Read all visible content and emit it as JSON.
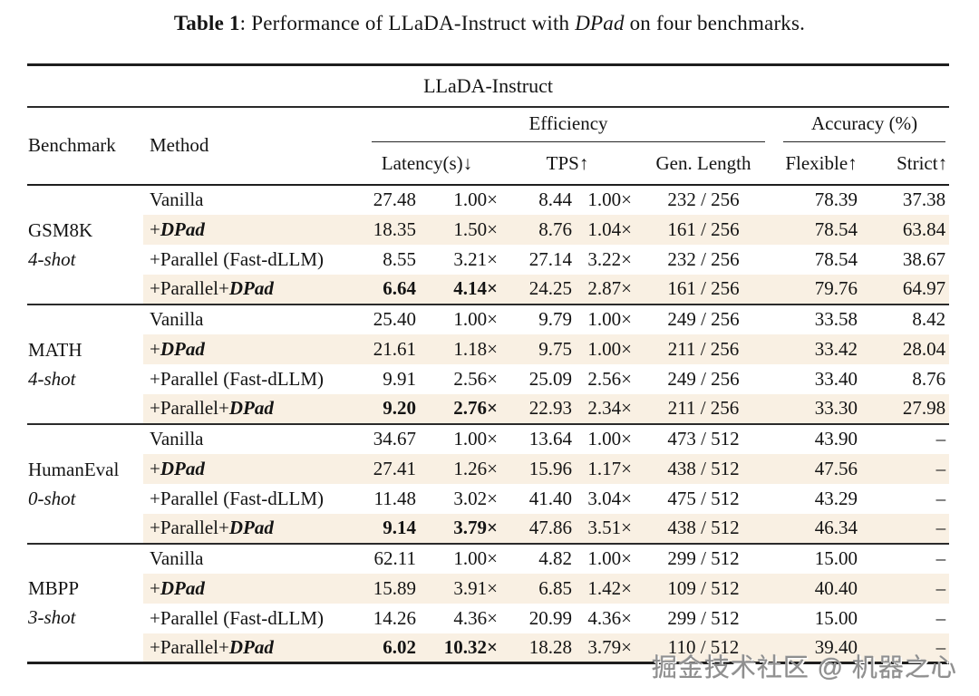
{
  "caption": {
    "label": "Table 1",
    "rest": ": Performance of LLaDA-Instruct with ",
    "emph": "DPad",
    "tail": " on four benchmarks."
  },
  "table": {
    "model_header": "LLaDA-Instruct",
    "headers": {
      "benchmark": "Benchmark",
      "method": "Method",
      "efficiency": "Efficiency",
      "accuracy": "Accuracy (%)",
      "latency": "Latency(s)↓",
      "tps": "TPS↑",
      "gen_length": "Gen. Length",
      "flexible": "Flexible↑",
      "strict": "Strict↑"
    }
  },
  "colors": {
    "highlight_row": "#f9f0e3",
    "rule": "#1f1f1f",
    "text": "#141414",
    "watermark": "#8f8f8f"
  },
  "groups": [
    {
      "name": "GSM8K",
      "shots": "4-shot",
      "rows": [
        {
          "method_plain": "Vanilla",
          "method_emph": "",
          "latency": "27.48",
          "latency_x": "1.00×",
          "tps": "8.44",
          "tps_x": "1.00×",
          "gen_length": "232 / 256",
          "flexible": "78.39",
          "strict": "37.38"
        },
        {
          "method_plain": "+",
          "method_emph": "DPad",
          "latency": "18.35",
          "latency_x": "1.50×",
          "tps": "8.76",
          "tps_x": "1.04×",
          "gen_length": "161 / 256",
          "flexible": "78.54",
          "strict": "63.84"
        },
        {
          "method_plain": "+Parallel (Fast-dLLM)",
          "method_emph": "",
          "latency": "8.55",
          "latency_x": "3.21×",
          "tps": "27.14",
          "tps_x": "3.22×",
          "gen_length": "232 / 256",
          "flexible": "78.54",
          "strict": "38.67"
        },
        {
          "method_plain": "+Parallel+",
          "method_emph": "DPad",
          "latency": "6.64",
          "latency_x": "4.14×",
          "tps": "24.25",
          "tps_x": "2.87×",
          "gen_length": "161 / 256",
          "flexible": "79.76",
          "strict": "64.97"
        }
      ]
    },
    {
      "name": "MATH",
      "shots": "4-shot",
      "rows": [
        {
          "method_plain": "Vanilla",
          "method_emph": "",
          "latency": "25.40",
          "latency_x": "1.00×",
          "tps": "9.79",
          "tps_x": "1.00×",
          "gen_length": "249 / 256",
          "flexible": "33.58",
          "strict": "8.42"
        },
        {
          "method_plain": "+",
          "method_emph": "DPad",
          "latency": "21.61",
          "latency_x": "1.18×",
          "tps": "9.75",
          "tps_x": "1.00×",
          "gen_length": "211 / 256",
          "flexible": "33.42",
          "strict": "28.04"
        },
        {
          "method_plain": "+Parallel (Fast-dLLM)",
          "method_emph": "",
          "latency": "9.91",
          "latency_x": "2.56×",
          "tps": "25.09",
          "tps_x": "2.56×",
          "gen_length": "249 / 256",
          "flexible": "33.40",
          "strict": "8.76"
        },
        {
          "method_plain": "+Parallel+",
          "method_emph": "DPad",
          "latency": "9.20",
          "latency_x": "2.76×",
          "tps": "22.93",
          "tps_x": "2.34×",
          "gen_length": "211 / 256",
          "flexible": "33.30",
          "strict": "27.98"
        }
      ]
    },
    {
      "name": "HumanEval",
      "shots": "0-shot",
      "rows": [
        {
          "method_plain": "Vanilla",
          "method_emph": "",
          "latency": "34.67",
          "latency_x": "1.00×",
          "tps": "13.64",
          "tps_x": "1.00×",
          "gen_length": "473 / 512",
          "flexible": "43.90",
          "strict": "–"
        },
        {
          "method_plain": "+",
          "method_emph": "DPad",
          "latency": "27.41",
          "latency_x": "1.26×",
          "tps": "15.96",
          "tps_x": "1.17×",
          "gen_length": "438 / 512",
          "flexible": "47.56",
          "strict": "–"
        },
        {
          "method_plain": "+Parallel (Fast-dLLM)",
          "method_emph": "",
          "latency": "11.48",
          "latency_x": "3.02×",
          "tps": "41.40",
          "tps_x": "3.04×",
          "gen_length": "475 / 512",
          "flexible": "43.29",
          "strict": "–"
        },
        {
          "method_plain": "+Parallel+",
          "method_emph": "DPad",
          "latency": "9.14",
          "latency_x": "3.79×",
          "tps": "47.86",
          "tps_x": "3.51×",
          "gen_length": "438 / 512",
          "flexible": "46.34",
          "strict": "–"
        }
      ]
    },
    {
      "name": "MBPP",
      "shots": "3-shot",
      "rows": [
        {
          "method_plain": "Vanilla",
          "method_emph": "",
          "latency": "62.11",
          "latency_x": "1.00×",
          "tps": "4.82",
          "tps_x": "1.00×",
          "gen_length": "299 / 512",
          "flexible": "15.00",
          "strict": "–"
        },
        {
          "method_plain": "+",
          "method_emph": "DPad",
          "latency": "15.89",
          "latency_x": "3.91×",
          "tps": "6.85",
          "tps_x": "1.42×",
          "gen_length": "109 / 512",
          "flexible": "40.40",
          "strict": "–"
        },
        {
          "method_plain": "+Parallel (Fast-dLLM)",
          "method_emph": "",
          "latency": "14.26",
          "latency_x": "4.36×",
          "tps": "20.99",
          "tps_x": "4.36×",
          "gen_length": "299 / 512",
          "flexible": "15.00",
          "strict": "–"
        },
        {
          "method_plain": "+Parallel+",
          "method_emph": "DPad",
          "latency": "6.02",
          "latency_x": "10.32×",
          "tps": "18.28",
          "tps_x": "3.79×",
          "gen_length": "110 / 512",
          "flexible": "39.40",
          "strict": "–"
        }
      ]
    }
  ],
  "watermark": {
    "text": "掘金技术社区 @ 机器之心"
  }
}
